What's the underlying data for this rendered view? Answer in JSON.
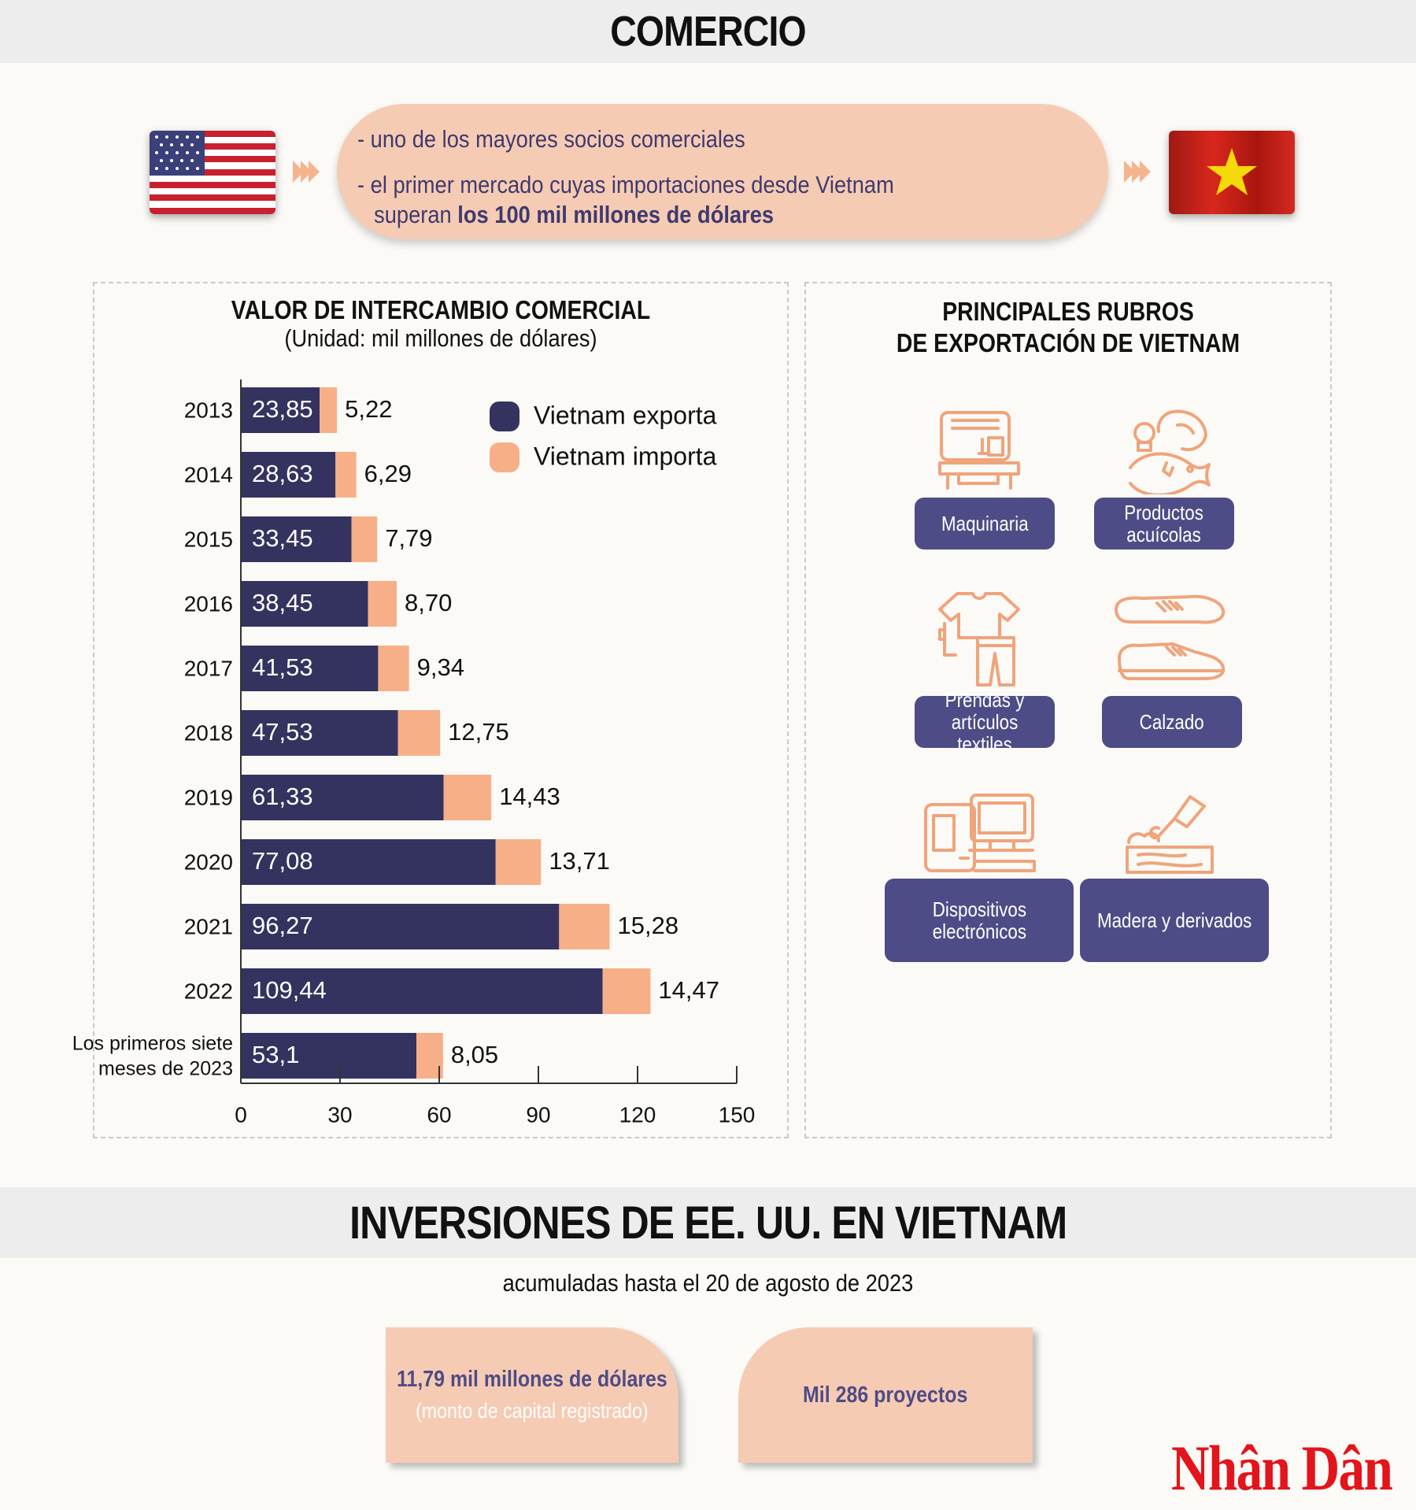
{
  "header": {
    "title": "COMERCIO"
  },
  "relation": {
    "line1": "uno de los mayores socios comerciales",
    "line2_a": "el primer mercado cuyas importaciones desde Vietnam",
    "line2_b": "superan",
    "line2_bold": "los 100 mil millones de dólares",
    "flags": [
      "us-flag",
      "vietnam-flag"
    ]
  },
  "chart_data": {
    "type": "bar",
    "orientation": "horizontal",
    "stacked": true,
    "title": "VALOR DE INTERCAMBIO COMERCIAL",
    "subtitle": "(Unidad: mil millones de dólares)",
    "categories": [
      "2013",
      "2014",
      "2015",
      "2016",
      "2017",
      "2018",
      "2019",
      "2020",
      "2021",
      "2022",
      "Los primeros siete|meses de 2023"
    ],
    "series": [
      {
        "name": "Vietnam exporta",
        "color": "#34325f",
        "values": [
          23.85,
          28.63,
          33.45,
          38.45,
          41.53,
          47.53,
          61.33,
          77.08,
          96.27,
          109.44,
          53.1
        ],
        "labels": [
          "23,85",
          "28,63",
          "33,45",
          "38,45",
          "41,53",
          "47,53",
          "61,33",
          "77,08",
          "96,27",
          "109,44",
          "53,1"
        ]
      },
      {
        "name": "Vietnam importa",
        "color": "#f7af88",
        "values": [
          5.22,
          6.29,
          7.79,
          8.7,
          9.34,
          12.75,
          14.43,
          13.71,
          15.28,
          14.47,
          8.05
        ],
        "labels": [
          "5,22",
          "6,29",
          "7,79",
          "8,70",
          "9,34",
          "12,75",
          "14,43",
          "13,71",
          "15,28",
          "14,47",
          "8,05"
        ]
      }
    ],
    "xlim": [
      0,
      150
    ],
    "xticks": [
      "0",
      "30",
      "60",
      "90",
      "120",
      "150"
    ],
    "legend_position": "top-right"
  },
  "exports": {
    "title_line1": "PRINCIPALES RUBROS",
    "title_line2": "DE EXPORTACIÓN DE VIETNAM",
    "items": [
      {
        "label": "Maquinaria",
        "icon": "sewing-machine-icon"
      },
      {
        "label": "Productos|acuícolas",
        "icon": "seafood-icon"
      },
      {
        "label": "Prendas y|artículos textiles",
        "icon": "clothing-icon"
      },
      {
        "label": "Calzado",
        "icon": "shoes-icon"
      },
      {
        "label": "Dispositivos|electrónicos",
        "icon": "electronics-icon"
      },
      {
        "label": "Madera y derivados",
        "icon": "wood-icon"
      }
    ]
  },
  "invest": {
    "title": "INVERSIONES DE EE. UU. EN VIETNAM",
    "subtitle": "acumuladas hasta el 20 de agosto de 2023",
    "capital": "11,79 mil millones de dólares",
    "capital_note": "(monto de capital registrado)",
    "projects": "Mil 286 proyectos"
  },
  "brand": {
    "logo": "Nhân Dân"
  }
}
